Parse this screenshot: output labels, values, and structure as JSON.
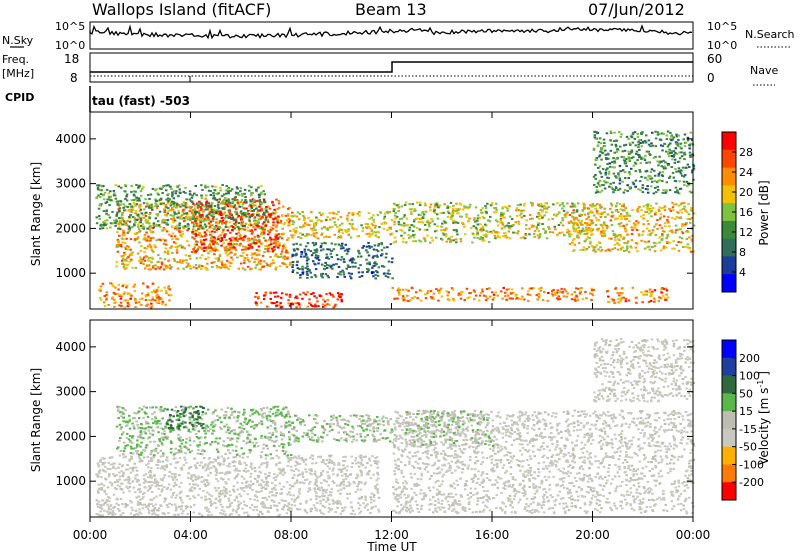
{
  "header": {
    "station": "Wallops Island (fitACF)",
    "beam": "Beam 13",
    "date": "07/Jun/2012"
  },
  "top_panels": {
    "nsky_label": "N.Sky",
    "nsearch_label": "N.Search",
    "noise_ticks_left": [
      "10^5",
      "10^0"
    ],
    "noise_ticks_right": [
      "10^5",
      "10^0"
    ],
    "freq_label": "Freq.",
    "freq_unit": "[MHz]",
    "freq_ticks": [
      "18",
      "8"
    ],
    "nave_label": "Nave",
    "nave_ticks": [
      "60",
      "0"
    ],
    "cpid_label": "CPID",
    "cpid_value": "tau (fast) -503"
  },
  "colors": {
    "power_scale": [
      "#0000ff",
      "#1a3c9a",
      "#2e6e5a",
      "#3a8a3a",
      "#7fc23f",
      "#f2c200",
      "#ff8c00",
      "#ff4500",
      "#ff0000"
    ],
    "velocity_scale": [
      "#0000ff",
      "#1f3f9f",
      "#2f6a3f",
      "#5ab84a",
      "#bdbdb0",
      "#c8c8c0",
      "#ffb000",
      "#ff7a00",
      "#ff0000"
    ],
    "ground_scatter": "#c8c8c0"
  },
  "chart_data": [
    {
      "type": "heatmap",
      "title": "",
      "xlabel": "Time UT",
      "ylabel": "Slant Range [km]",
      "x_ticks": [
        "00:00",
        "04:00",
        "08:00",
        "12:00",
        "16:00",
        "20:00",
        "00:00"
      ],
      "y_ticks": [
        "1000",
        "2000",
        "3000",
        "4000"
      ],
      "xlim_hours": [
        0,
        24
      ],
      "ylim_km": [
        200,
        4600
      ],
      "colorbar": {
        "label": "Power [dB]",
        "ticks": [
          "4",
          "8",
          "12",
          "16",
          "20",
          "24",
          "28"
        ],
        "range": [
          0,
          30
        ]
      },
      "regions": [
        {
          "t0": 0.3,
          "t1": 3.2,
          "r0": 250,
          "r1": 800,
          "value": 22
        },
        {
          "t0": 1.0,
          "t1": 8.0,
          "r0": 1100,
          "r1": 2600,
          "value": 20
        },
        {
          "t0": 4.0,
          "t1": 7.5,
          "r0": 1500,
          "r1": 2700,
          "value": 26
        },
        {
          "t0": 0.2,
          "t1": 7.0,
          "r0": 2000,
          "r1": 3000,
          "value": 12
        },
        {
          "t0": 6.5,
          "t1": 10.0,
          "r0": 250,
          "r1": 600,
          "value": 27
        },
        {
          "t0": 8.0,
          "t1": 12.0,
          "r0": 1800,
          "r1": 2400,
          "value": 18
        },
        {
          "t0": 8.0,
          "t1": 12.0,
          "r0": 900,
          "r1": 1700,
          "value": 8
        },
        {
          "t0": 12.0,
          "t1": 16.0,
          "r0": 1700,
          "r1": 2600,
          "value": 16
        },
        {
          "t0": 12.0,
          "t1": 20.0,
          "r0": 400,
          "r1": 700,
          "value": 22
        },
        {
          "t0": 16.0,
          "t1": 20.0,
          "r0": 1800,
          "r1": 2600,
          "value": 17
        },
        {
          "t0": 19.0,
          "t1": 24.0,
          "r0": 1500,
          "r1": 2600,
          "value": 19
        },
        {
          "t0": 20.5,
          "t1": 23.0,
          "r0": 350,
          "r1": 700,
          "value": 23
        },
        {
          "t0": 20.0,
          "t1": 24.0,
          "r0": 2800,
          "r1": 4200,
          "value": 11
        }
      ]
    },
    {
      "type": "heatmap",
      "title": "",
      "xlabel": "Time UT",
      "ylabel": "Slant Range [km]",
      "x_ticks": [
        "00:00",
        "04:00",
        "08:00",
        "12:00",
        "16:00",
        "20:00",
        "00:00"
      ],
      "y_ticks": [
        "1000",
        "2000",
        "3000",
        "4000"
      ],
      "xlim_hours": [
        0,
        24
      ],
      "ylim_km": [
        200,
        4600
      ],
      "colorbar": {
        "label": "Velocity [m s^-1]",
        "ticks": [
          "200",
          "100",
          "50",
          "15",
          "-15",
          "-50",
          "-100",
          "-200"
        ],
        "range": [
          -250,
          250
        ]
      },
      "regions": [
        {
          "t0": 0.2,
          "t1": 11.5,
          "r0": 250,
          "r1": 1600,
          "value": 0
        },
        {
          "t0": 1.0,
          "t1": 8.0,
          "r0": 1600,
          "r1": 2700,
          "value": 30
        },
        {
          "t0": 8.0,
          "t1": 12.0,
          "r0": 1900,
          "r1": 2500,
          "value": 25
        },
        {
          "t0": 12.0,
          "t1": 24.0,
          "r0": 300,
          "r1": 2600,
          "value": 0
        },
        {
          "t0": 12.5,
          "t1": 16.0,
          "r0": 1800,
          "r1": 2600,
          "value": 20
        },
        {
          "t0": 20.0,
          "t1": 24.0,
          "r0": 2800,
          "r1": 4200,
          "value": 0
        },
        {
          "t0": 3.0,
          "t1": 4.5,
          "r0": 2200,
          "r1": 2700,
          "value": 110
        }
      ]
    }
  ]
}
